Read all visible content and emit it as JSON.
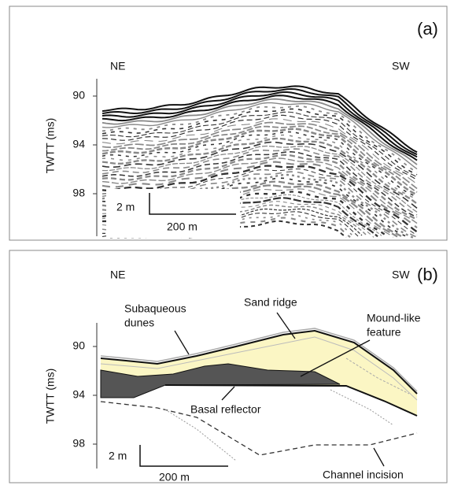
{
  "panels": [
    {
      "label": "(a)",
      "left": "NE",
      "right": "SW",
      "axis_label": "TWTT (ms)",
      "ticks": [
        "90",
        "94",
        "98"
      ],
      "scale_vertical": "2 m",
      "scale_horizontal": "200 m"
    },
    {
      "label": "(b)",
      "left": "NE",
      "right": "SW",
      "axis_label": "TWTT (ms)",
      "ticks": [
        "90",
        "94",
        "98"
      ],
      "scale_vertical": "2 m",
      "scale_horizontal": "200 m",
      "annotations": [
        "Subaqueous",
        "dunes",
        "Sand ridge",
        "Mound-like",
        "feature",
        "Basal reflector",
        "Channel incision"
      ]
    }
  ]
}
